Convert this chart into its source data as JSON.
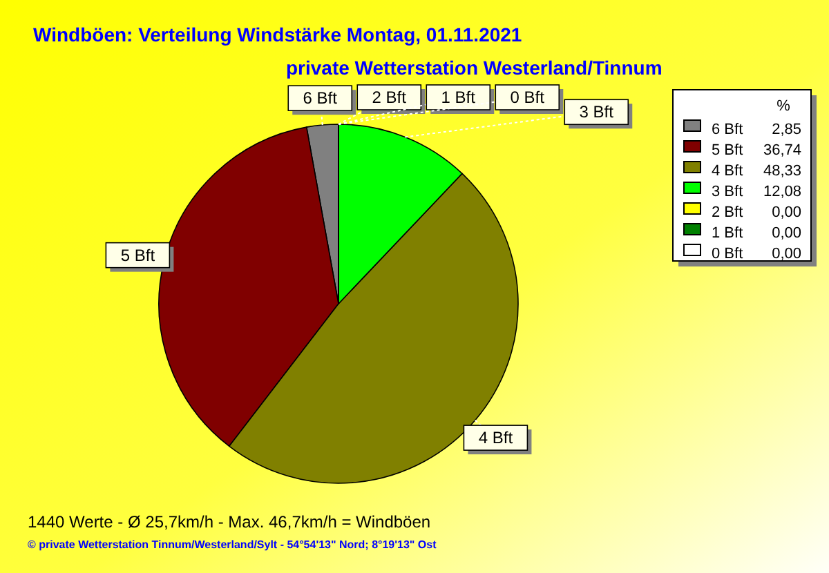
{
  "chart_data": {
    "type": "pie",
    "title": "Windböen: Verteilung Windstärke  Montag, 01.11.2021",
    "subtitle": "private Wetterstation Westerland/Tinnum",
    "categories": [
      "6 Bft",
      "5 Bft",
      "4 Bft",
      "3 Bft",
      "2 Bft",
      "1 Bft",
      "0 Bft"
    ],
    "values": [
      2.85,
      36.74,
      48.33,
      12.08,
      0,
      0,
      0
    ],
    "colors": [
      "#808080",
      "#800000",
      "#808000",
      "#00ff00",
      "#ffff00",
      "#008000",
      "#ffffff"
    ],
    "value_labels": [
      "2,85",
      "36,74",
      "48,33",
      "12,08",
      "0,00",
      "0,00",
      "0,00"
    ],
    "legend": "top right",
    "legend_title": "%",
    "annotations": [
      "1440 Werte   -   Ø 25,7km/h  -  Max. 46,7km/h = Windböen",
      "© private Wetterstation Tinnum/Westerland/Sylt   -   54°54'13\" Nord; 8°19'13\" Ost"
    ]
  }
}
